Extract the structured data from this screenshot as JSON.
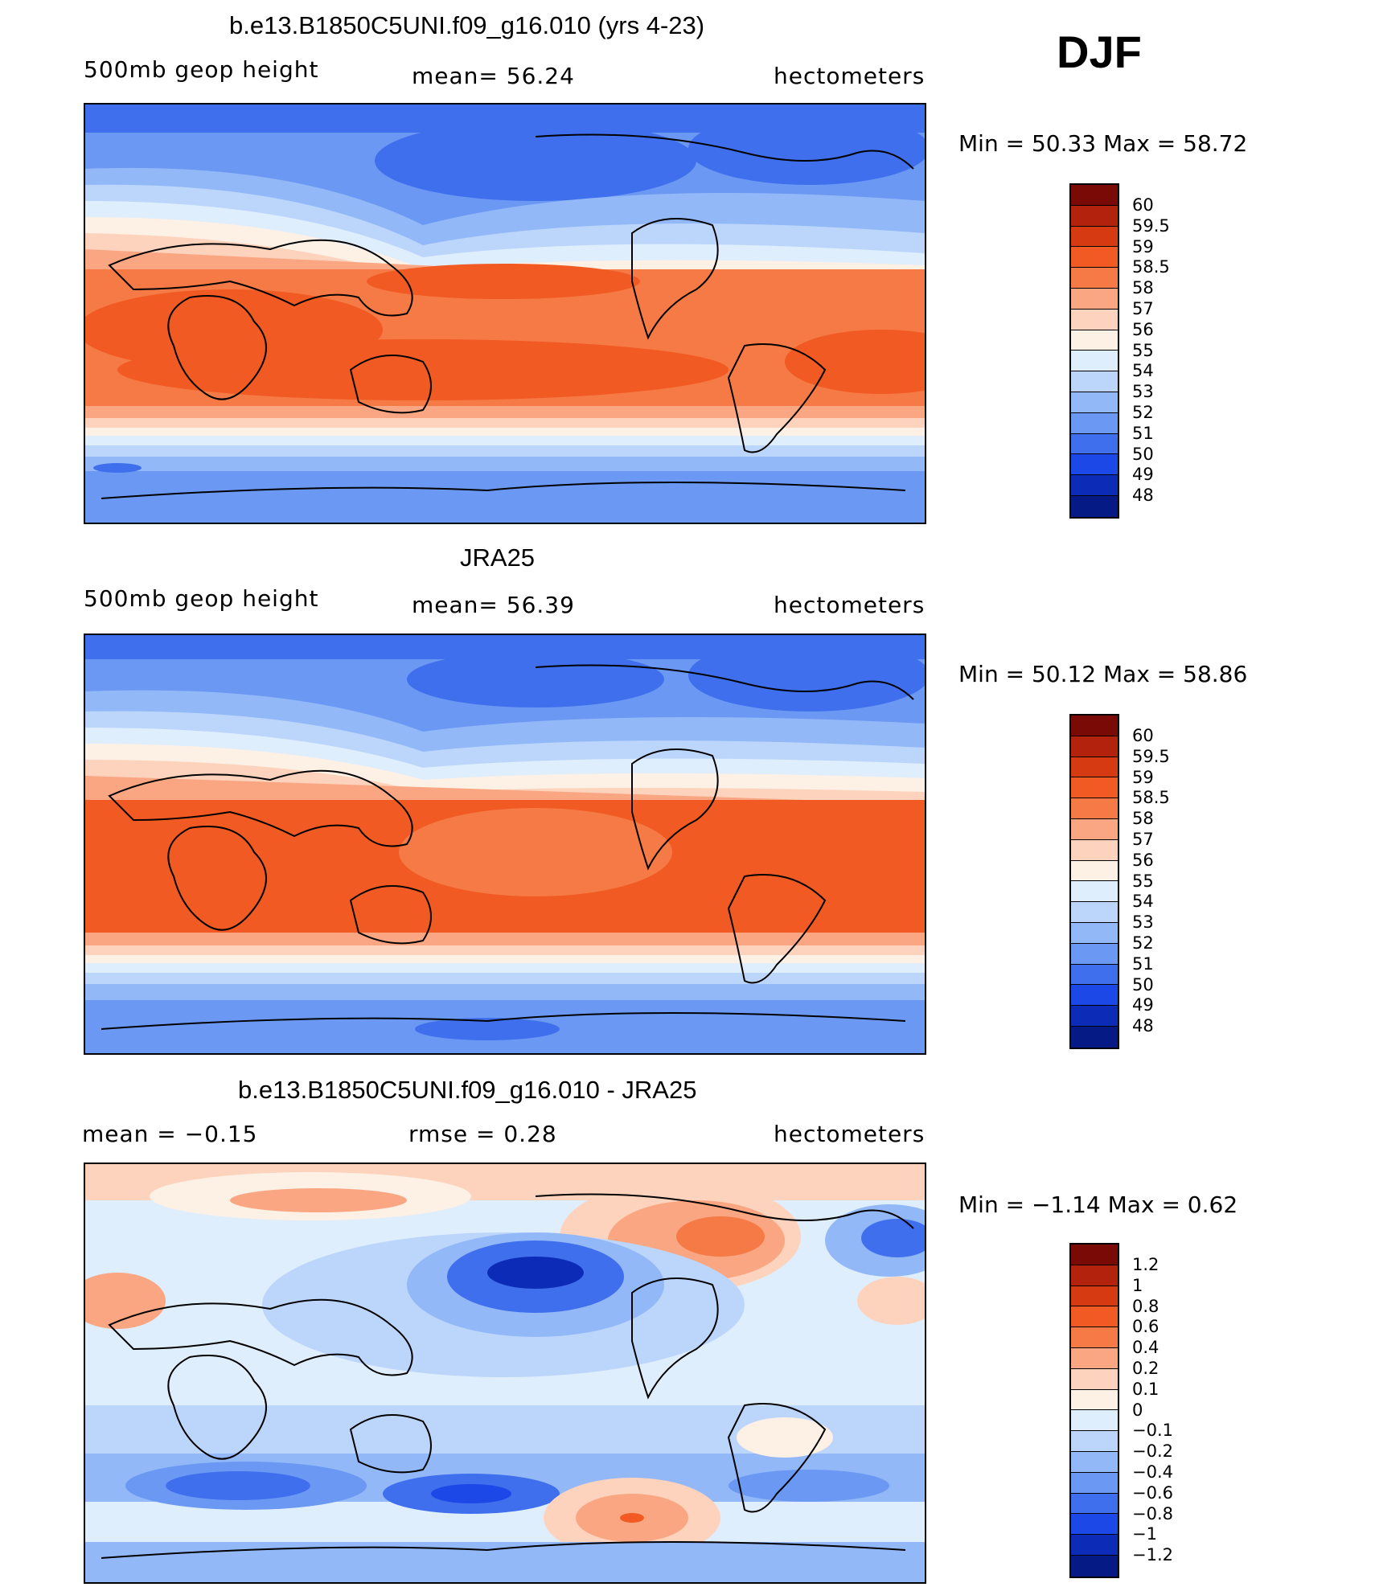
{
  "header": {
    "season": "DJF"
  },
  "panels": [
    {
      "title": "b.e13.B1850C5UNI.f09_g16.010 (yrs 4-23)",
      "left_label": "500mb  geop  height",
      "center_label": "mean=   56.24",
      "right_label": "hectometers",
      "min_max": "Min  =     50.33  Max  =     58.72",
      "colorbar_labels": [
        "60",
        "59.5",
        "59",
        "58.5",
        "58",
        "57",
        "56",
        "55",
        "54",
        "53",
        "52",
        "51",
        "50",
        "49",
        "48"
      ]
    },
    {
      "title": "JRA25",
      "left_label": "500mb  geop  height",
      "center_label": "mean=   56.39",
      "right_label": "hectometers",
      "min_max": "Min  =     50.12  Max  =     58.86",
      "colorbar_labels": [
        "60",
        "59.5",
        "59",
        "58.5",
        "58",
        "57",
        "56",
        "55",
        "54",
        "53",
        "52",
        "51",
        "50",
        "49",
        "48"
      ]
    },
    {
      "title": "b.e13.B1850C5UNI.f09_g16.010 - JRA25",
      "left_label": "mean  =    −0.15",
      "center_label": "rmse  =     0.28",
      "right_label": "hectometers",
      "min_max": "Min  =    −1.14  Max  =      0.62",
      "colorbar_labels": [
        "1.2",
        "1",
        "0.8",
        "0.6",
        "0.4",
        "0.2",
        "0.1",
        "0",
        "−0.1",
        "−0.2",
        "−0.4",
        "−0.6",
        "−0.8",
        "−1",
        "−1.2"
      ]
    }
  ],
  "colors": {
    "colorbar_swatches": [
      "#7a0a06",
      "#b3220c",
      "#d63a12",
      "#f15a22",
      "#f57a45",
      "#fba682",
      "#fdd3bd",
      "#fdf0e4",
      "#dfeefd",
      "#bcd6fb",
      "#93b8f8",
      "#6b98f2",
      "#3f6fed",
      "#1b48e6",
      "#0c2cb8",
      "#051a84"
    ],
    "land_outline": "#000000"
  }
}
